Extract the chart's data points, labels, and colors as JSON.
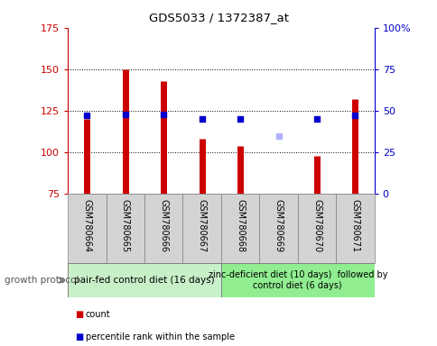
{
  "title": "GDS5033 / 1372387_at",
  "samples": [
    "GSM780664",
    "GSM780665",
    "GSM780666",
    "GSM780667",
    "GSM780668",
    "GSM780669",
    "GSM780670",
    "GSM780671"
  ],
  "count_values": [
    120,
    150,
    143,
    108,
    104,
    75,
    98,
    132
  ],
  "percentile_values": [
    47,
    48,
    48,
    45,
    45,
    null,
    45,
    47
  ],
  "absent_count": [
    null,
    null,
    null,
    null,
    null,
    75,
    null,
    null
  ],
  "absent_rank": [
    null,
    null,
    null,
    null,
    null,
    110,
    null,
    null
  ],
  "group1_indices": [
    0,
    1,
    2,
    3
  ],
  "group2_indices": [
    4,
    5,
    6,
    7
  ],
  "group1_label": "pair-fed control diet (16 days)",
  "group2_label": "zinc-deficient diet (10 days)  followed by\ncontrol diet (6 days)",
  "growth_protocol_label": "growth protocol",
  "ylim_left": [
    75,
    175
  ],
  "ylim_right": [
    0,
    100
  ],
  "yticks_left": [
    75,
    100,
    125,
    150,
    175
  ],
  "yticks_right": [
    0,
    25,
    50,
    75,
    100
  ],
  "ytick_labels_right": [
    "0",
    "25",
    "50",
    "75",
    "100%"
  ],
  "color_count": "#cc0000",
  "color_absent_count": "#ffb0b0",
  "color_percentile": "#0000cc",
  "color_absent_rank": "#b0b0ff",
  "color_sample_bg": "#d3d3d3",
  "color_group1_bg": "#c8f0c8",
  "color_group2_bg": "#90ee90",
  "color_border": "#808080"
}
